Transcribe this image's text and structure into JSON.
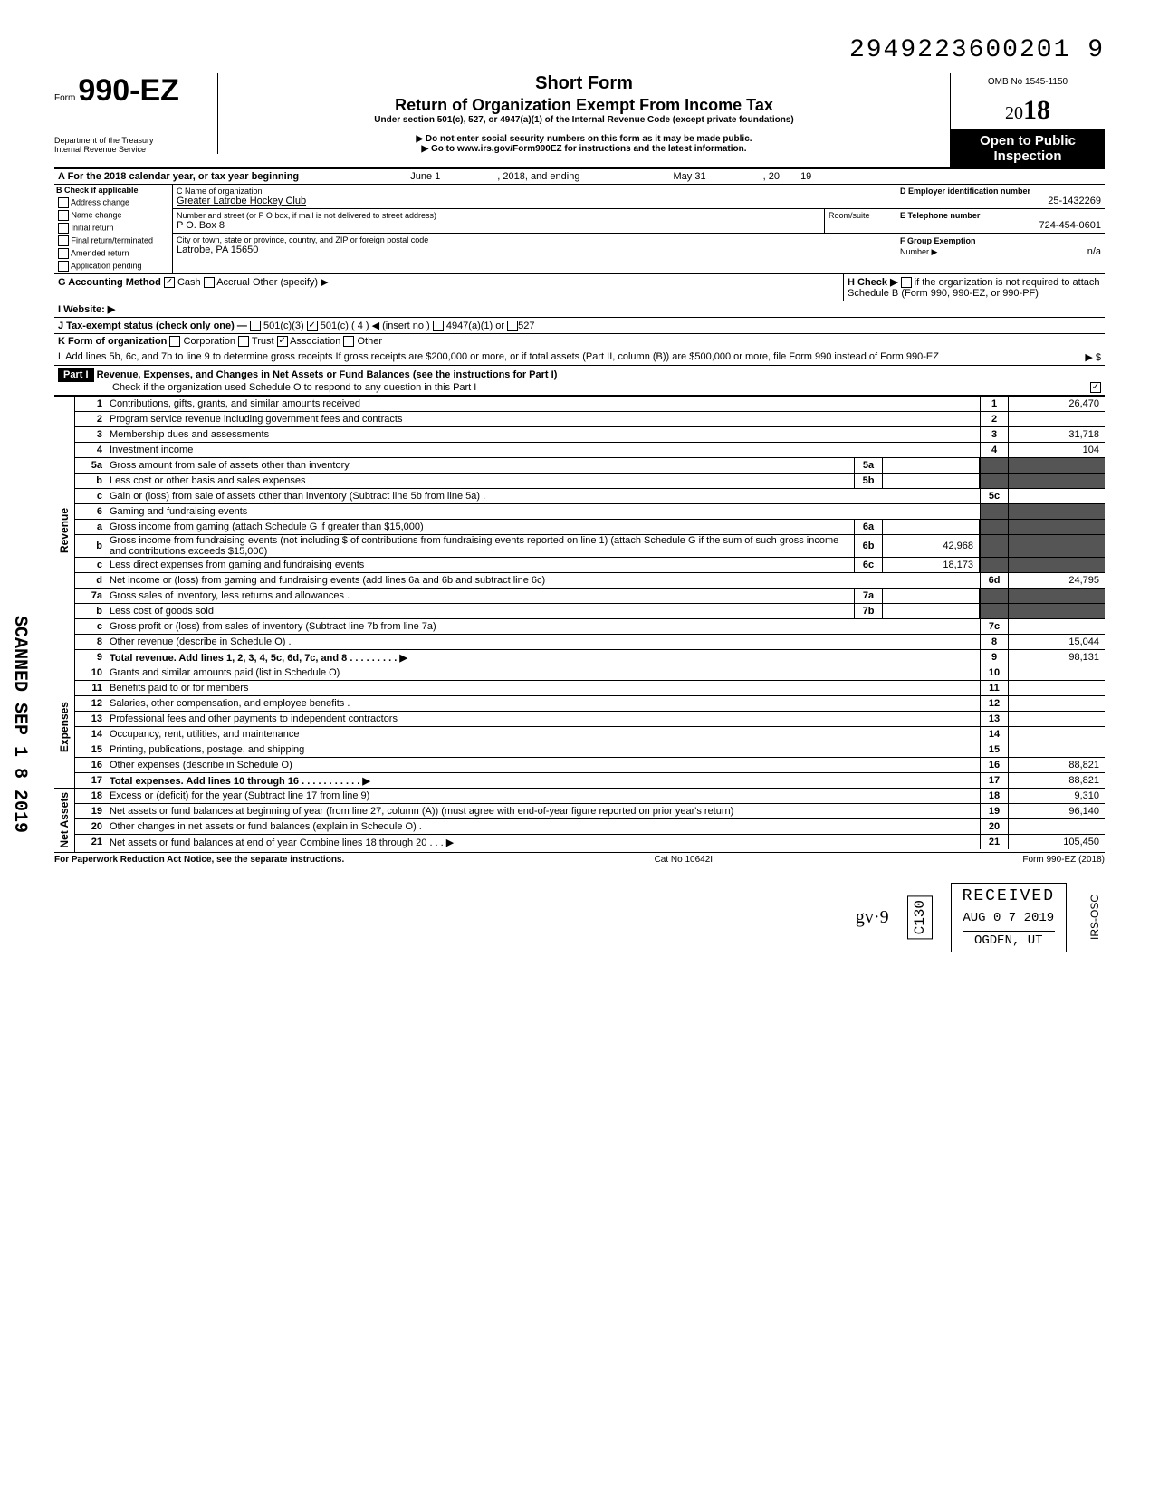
{
  "header_number": "2949223600201  9",
  "form": {
    "form_word": "Form",
    "number": "990-EZ",
    "title1": "Short Form",
    "title2": "Return of Organization Exempt From Income Tax",
    "subtitle": "Under section 501(c), 527, or 4947(a)(1) of the Internal Revenue Code (except private foundations)",
    "instruction1": "▶ Do not enter social security numbers on this form as it may be made public.",
    "instruction2": "▶ Go to www.irs.gov/Form990EZ for instructions and the latest information.",
    "omb": "OMB No 1545-1150",
    "year_prefix": "20",
    "year": "18",
    "open_public1": "Open to Public",
    "open_public2": "Inspection",
    "dept1": "Department of the Treasury",
    "dept2": "Internal Revenue Service"
  },
  "line_a": {
    "label": "A For the 2018 calendar year, or tax year beginning",
    "begin_label": "June 1",
    "mid": ", 2018, and ending",
    "end_label": "May 31",
    "end2": ", 20",
    "end_year": "19"
  },
  "section_b": {
    "header": "B Check if applicable",
    "items": [
      "Address change",
      "Name change",
      "Initial return",
      "Final return/terminated",
      "Amended return",
      "Application pending"
    ],
    "c_label": "C Name of organization",
    "org_name": "Greater Latrobe Hockey Club",
    "addr_label": "Number and street (or P O  box, if mail is not delivered to street address)",
    "room_label": "Room/suite",
    "addr": "P O. Box 8",
    "city_label": "City or town, state or province, country, and ZIP or foreign postal code",
    "city": "Latrobe, PA 15650",
    "d_label": "D Employer identification number",
    "ein": "25-1432269",
    "e_label": "E Telephone number",
    "phone": "724-454-0601",
    "f_label": "F Group Exemption",
    "f_label2": "Number ▶",
    "f_value": "n/a"
  },
  "line_g": {
    "label": "G Accounting Method",
    "cash": "Cash",
    "accrual": "Accrual",
    "other": "Other (specify) ▶"
  },
  "line_h": {
    "label": "H Check ▶",
    "text": "if the organization is not required to attach Schedule B (Form 990, 990-EZ, or 990-PF)"
  },
  "line_i": {
    "label": "I Website: ▶"
  },
  "line_j": {
    "label": "J Tax-exempt status (check only one) —",
    "c501c3": "501(c)(3)",
    "c501c": "501(c) (",
    "insert": "4",
    "insert2": ") ◀ (insert no )",
    "c4947": "4947(a)(1) or",
    "c527": "527"
  },
  "line_k": {
    "label": "K Form of organization",
    "corp": "Corporation",
    "trust": "Trust",
    "assoc": "Association",
    "other": "Other"
  },
  "line_l": {
    "text": "L Add lines 5b, 6c, and 7b to line 9 to determine gross receipts  If gross receipts are $200,000 or more, or if total assets (Part II, column (B)) are $500,000 or more, file Form 990 instead of Form 990-EZ",
    "arrow": "▶    $"
  },
  "part1": {
    "label": "Part I",
    "title": "Revenue, Expenses, and Changes in Net Assets or Fund Balances (see the instructions for Part I)",
    "check_text": "Check if the organization used Schedule O to respond to any question in this Part I"
  },
  "sections": {
    "revenue": "Revenue",
    "expenses": "Expenses",
    "netassets": "Net Assets"
  },
  "lines": [
    {
      "n": "1",
      "t": "Contributions, gifts, grants, and similar amounts received",
      "bn": "1",
      "v": "26,470"
    },
    {
      "n": "2",
      "t": "Program service revenue including government fees and contracts",
      "bn": "2",
      "v": ""
    },
    {
      "n": "3",
      "t": "Membership dues and assessments",
      "bn": "3",
      "v": "31,718"
    },
    {
      "n": "4",
      "t": "Investment income",
      "bn": "4",
      "v": "104"
    },
    {
      "n": "5a",
      "t": "Gross amount from sale of assets other than inventory",
      "ib": "5a",
      "iv": ""
    },
    {
      "n": "b",
      "t": "Less  cost or other basis and sales expenses",
      "ib": "5b",
      "iv": ""
    },
    {
      "n": "c",
      "t": "Gain or (loss) from sale of assets other than inventory (Subtract line 5b from line 5a)  .",
      "bn": "5c",
      "v": ""
    },
    {
      "n": "6",
      "t": "Gaming and fundraising events"
    },
    {
      "n": "a",
      "t": "Gross income from gaming (attach Schedule G if greater than $15,000)",
      "ib": "6a",
      "iv": ""
    },
    {
      "n": "b",
      "t": "Gross income from fundraising events (not including  $                           of contributions from fundraising events reported on line 1) (attach Schedule G if the sum of such gross income and contributions exceeds $15,000)",
      "ib": "6b",
      "iv": "42,968"
    },
    {
      "n": "c",
      "t": "Less  direct expenses from gaming and fundraising events",
      "ib": "6c",
      "iv": "18,173"
    },
    {
      "n": "d",
      "t": "Net income or (loss) from gaming and fundraising events (add lines 6a and 6b and subtract line 6c)",
      "bn": "6d",
      "v": "24,795"
    },
    {
      "n": "7a",
      "t": "Gross sales of inventory, less returns and allowances  .",
      "ib": "7a",
      "iv": ""
    },
    {
      "n": "b",
      "t": "Less  cost of goods sold",
      "ib": "7b",
      "iv": ""
    },
    {
      "n": "c",
      "t": "Gross profit or (loss) from sales of inventory (Subtract line 7b from line 7a)",
      "bn": "7c",
      "v": ""
    },
    {
      "n": "8",
      "t": "Other revenue (describe in Schedule O) .",
      "bn": "8",
      "v": "15,044"
    },
    {
      "n": "9",
      "t": "Total revenue. Add lines 1, 2, 3, 4, 5c, 6d, 7c, and 8   .   .   .   .   .   .   .   .   .   ▶",
      "bn": "9",
      "v": "98,131",
      "bold": true
    }
  ],
  "expense_lines": [
    {
      "n": "10",
      "t": "Grants and similar amounts paid (list in Schedule O)",
      "bn": "10",
      "v": ""
    },
    {
      "n": "11",
      "t": "Benefits paid to or for members",
      "bn": "11",
      "v": ""
    },
    {
      "n": "12",
      "t": "Salaries, other compensation, and employee benefits  .",
      "bn": "12",
      "v": ""
    },
    {
      "n": "13",
      "t": "Professional fees and other payments to independent contractors",
      "bn": "13",
      "v": ""
    },
    {
      "n": "14",
      "t": "Occupancy, rent, utilities, and maintenance",
      "bn": "14",
      "v": ""
    },
    {
      "n": "15",
      "t": "Printing, publications, postage, and shipping",
      "bn": "15",
      "v": ""
    },
    {
      "n": "16",
      "t": "Other expenses (describe in Schedule O)",
      "bn": "16",
      "v": "88,821"
    },
    {
      "n": "17",
      "t": "Total expenses. Add lines 10 through 16  .   .   .   .   .   .   .   .   .   .   .   ▶",
      "bn": "17",
      "v": "88,821",
      "bold": true
    }
  ],
  "netasset_lines": [
    {
      "n": "18",
      "t": "Excess or (deficit) for the year (Subtract line 17 from line 9)",
      "bn": "18",
      "v": "9,310"
    },
    {
      "n": "19",
      "t": "Net assets or fund balances at beginning of year (from line 27, column (A)) (must agree with end-of-year figure reported on prior year's return)",
      "bn": "19",
      "v": "96,140"
    },
    {
      "n": "20",
      "t": "Other changes in net assets or fund balances (explain in Schedule O) .",
      "bn": "20",
      "v": ""
    },
    {
      "n": "21",
      "t": "Net assets or fund balances at end of year  Combine lines 18 through 20   .   .   .   ▶",
      "bn": "21",
      "v": "105,450"
    }
  ],
  "footer": {
    "left": "For Paperwork Reduction Act Notice, see the separate instructions.",
    "mid": "Cat No 10642I",
    "right": "Form 990-EZ (2018)"
  },
  "scanned": "SCANNED SEP 1 8 2019",
  "stamps": {
    "received": "RECEIVED",
    "date": "AUG 0 7 2019",
    "location": "OGDEN, UT",
    "c130": "C130",
    "irsosc": "IRS-OSC",
    "sig": "gv·9"
  }
}
